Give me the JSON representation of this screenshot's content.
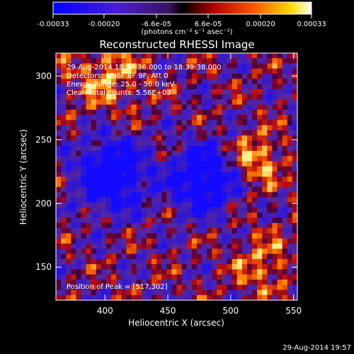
{
  "colorbar": {
    "tick_labels": [
      "-0.00033",
      "-0.00020",
      "-6.6e-05",
      "6.6e-05",
      "0.00020",
      "0.00033"
    ],
    "tick_values": [
      -0.00033,
      -0.0002,
      -6.6e-05,
      6.6e-05,
      0.0002,
      0.00033
    ],
    "range": [
      -0.00033,
      0.00033
    ],
    "units_text": "(photons cm⁻² s⁻¹ asec⁻²)"
  },
  "plot": {
    "title": "Reconstructed RHESSI Image",
    "info_lines": [
      "29-Aug-2014 18:34:36.000 to 18:39:38.000",
      "Detectors: 3F 6F 8F 9F, Att 0",
      "Energy Range: 25.0 - 50.0 keV",
      "Clean     Total counts: 5.56E+03"
    ],
    "peak_text": "Position of Peak = [517,302]",
    "footer_timestamp": "29-Aug-2014 19:57"
  },
  "chart_data": {
    "type": "heatmap",
    "title": "Reconstructed RHESSI Image",
    "xlabel": "Heliocentric X (arcsec)",
    "ylabel": "Heliocentric Y (arcsec)",
    "xlim": [
      361,
      553
    ],
    "ylim": [
      124,
      318
    ],
    "x_ticks": [
      400,
      450,
      500,
      550
    ],
    "y_ticks": [
      150,
      200,
      250,
      300
    ],
    "colormap": "blue-purple-red-yellow-white",
    "peak": [
      517,
      302
    ]
  }
}
